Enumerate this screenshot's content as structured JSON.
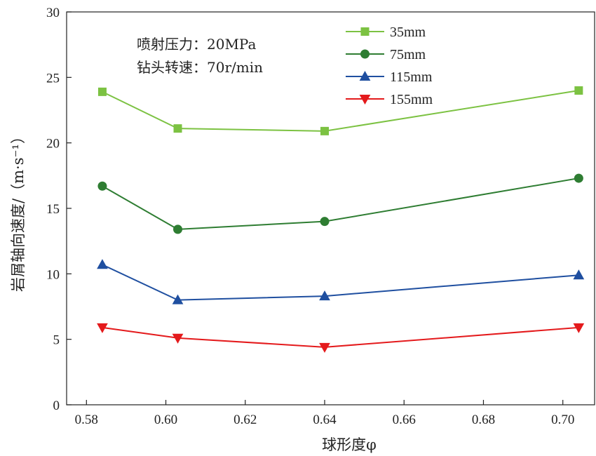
{
  "chart_data": {
    "type": "line",
    "xlabel": "球形度φ",
    "ylabel": "岩屑轴向速度/（m·s⁻¹）",
    "xlim": [
      0.575,
      0.708
    ],
    "ylim": [
      0,
      30
    ],
    "x_ticks": [
      "0.58",
      "0.60",
      "0.62",
      "0.64",
      "0.66",
      "0.68",
      "0.70"
    ],
    "y_ticks": [
      "0",
      "5",
      "10",
      "15",
      "20",
      "25",
      "30"
    ],
    "x_tick_values": [
      0.58,
      0.6,
      0.62,
      0.64,
      0.66,
      0.68,
      0.7
    ],
    "y_tick_values": [
      0,
      5,
      10,
      15,
      20,
      25,
      30
    ],
    "grid": false,
    "legend_position": "top-right",
    "annotations": [
      "喷射压力：20MPa",
      "钻头转速：70r/min"
    ],
    "x": [
      0.584,
      0.603,
      0.64,
      0.704
    ],
    "series": [
      {
        "name": "35mm",
        "values": [
          23.9,
          21.1,
          20.9,
          24.0
        ],
        "color": "#7cc242",
        "marker": "square"
      },
      {
        "name": "75mm",
        "values": [
          16.7,
          13.4,
          14.0,
          17.3
        ],
        "color": "#2e7d32",
        "marker": "circle"
      },
      {
        "name": "115mm",
        "values": [
          10.7,
          8.0,
          8.3,
          9.9
        ],
        "color": "#1f4fa0",
        "marker": "triangle-up"
      },
      {
        "name": "155mm",
        "values": [
          5.9,
          5.1,
          4.4,
          5.9
        ],
        "color": "#e41a1c",
        "marker": "triangle-down"
      }
    ]
  }
}
